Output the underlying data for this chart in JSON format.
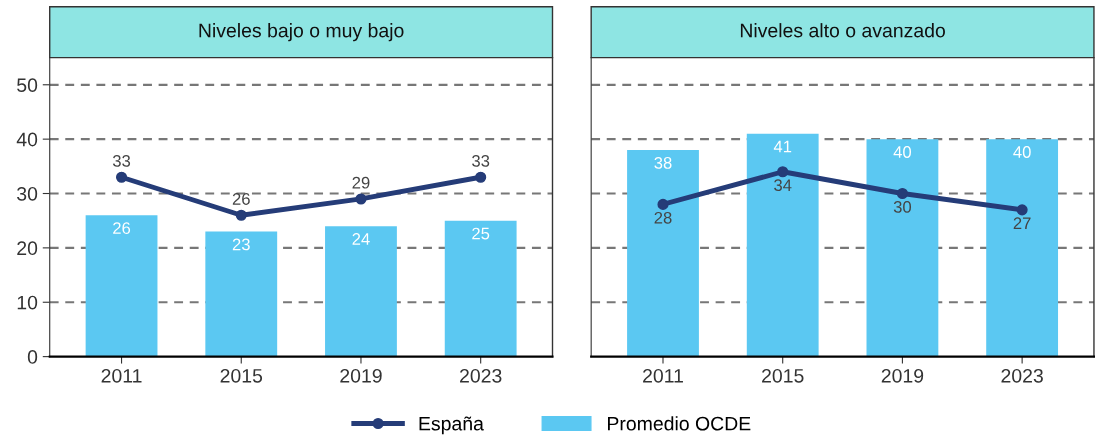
{
  "chart_data": [
    {
      "type": "bar",
      "title": "Niveles bajo o muy bajo",
      "categories": [
        "2011",
        "2015",
        "2019",
        "2023"
      ],
      "ylim": [
        0,
        55
      ],
      "yticks": [
        0,
        10,
        20,
        30,
        40,
        50
      ],
      "grid": "y",
      "data_labels": true,
      "legend": "bottom",
      "series": [
        {
          "name": "Promedio OCDE",
          "color": "#5bc8f2",
          "values": [
            26,
            23,
            24,
            25
          ]
        },
        {
          "name": "España",
          "type": "line",
          "color": "#253c78",
          "marker": "circle",
          "values": [
            33,
            26,
            29,
            33
          ]
        }
      ]
    },
    {
      "type": "bar",
      "title": "Niveles alto o avanzado",
      "categories": [
        "2011",
        "2015",
        "2019",
        "2023"
      ],
      "ylim": [
        0,
        55
      ],
      "yticks": [
        0,
        10,
        20,
        30,
        40,
        50
      ],
      "grid": "y",
      "data_labels": true,
      "tick_labels": "x",
      "series": [
        {
          "name": "Promedio OCDE",
          "color": "#5bc8f2",
          "values": [
            38,
            41,
            40,
            40
          ]
        },
        {
          "name": "España",
          "type": "line",
          "color": "#253c78",
          "marker": "circle",
          "values": [
            28,
            34,
            30,
            27
          ]
        }
      ]
    }
  ]
}
